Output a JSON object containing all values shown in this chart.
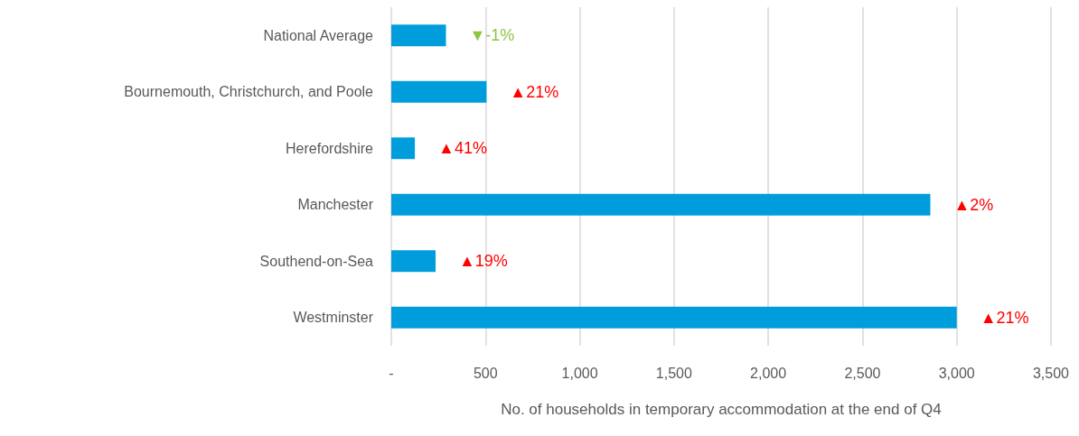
{
  "chart_data": {
    "type": "bar",
    "orientation": "horizontal",
    "categories": [
      "National Average",
      "Bournemouth, Christchurch, and Poole",
      "Herefordshire",
      "Manchester",
      "Southend-on-Sea",
      "Westminster"
    ],
    "values": [
      290,
      505,
      125,
      2860,
      235,
      3000
    ],
    "annotations": [
      {
        "text": "▼-1%",
        "x": 290,
        "y": "National Average"
      },
      {
        "text": "▲21%",
        "x": 505,
        "y": "Bournemouth, Christchurch, and Poole"
      },
      {
        "text": "▲41%",
        "x": 125,
        "y": "Herefordshire"
      },
      {
        "text": "▲2%",
        "x": 2860,
        "y": "Manchester"
      },
      {
        "text": "▲19%",
        "x": 235,
        "y": "Southend-on-Sea"
      },
      {
        "text": "▲21%",
        "x": 3000,
        "y": "Westminster"
      }
    ],
    "color": "#009ddc",
    "xlabel": "No. of households in temporary accommodation at the end of Q4",
    "xlim": [
      0,
      3500
    ],
    "xticks": [
      {
        "value": 0,
        "label": "-"
      },
      500,
      {
        "value": 1000,
        "label": "1,000"
      },
      {
        "value": 1500,
        "label": "1,500"
      },
      {
        "value": 2000,
        "label": "2,000"
      },
      {
        "value": 2500,
        "label": "2,500"
      },
      {
        "value": 3000,
        "label": "3,000"
      },
      {
        "value": 3500,
        "label": "3,500"
      }
    ],
    "grid": "x"
  }
}
